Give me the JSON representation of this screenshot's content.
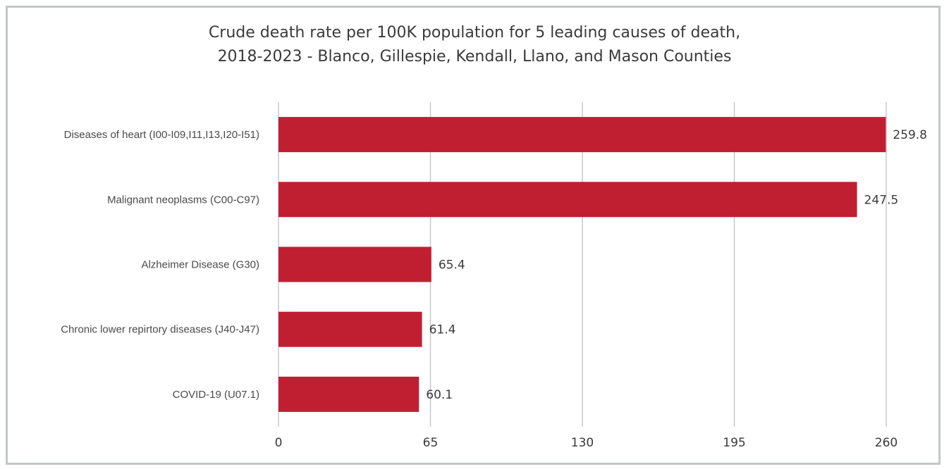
{
  "chart_data": {
    "type": "bar",
    "orientation": "horizontal",
    "title_lines": [
      "Crude death rate per 100K population for 5 leading causes of death,",
      "2018-2023 - Blanco, Gillespie, Kendall, Llano, and Mason Counties"
    ],
    "categories": [
      "Diseases of heart (I00-I09,I11,I13,I20-I51)",
      "Malignant neoplasms (C00-C97)",
      "Alzheimer Disease (G30)",
      "Chronic lower repirtory diseases (J40-J47)",
      "COVID-19 (U07.1)"
    ],
    "values": [
      259.8,
      247.5,
      65.4,
      61.4,
      60.1
    ],
    "value_labels": [
      "259.8",
      "247.5",
      "65.4",
      "61.4",
      "60.1"
    ],
    "xlim": [
      0,
      260
    ],
    "xticks": [
      0,
      65,
      130,
      195,
      260
    ],
    "xtick_labels": [
      "0",
      "65",
      "130",
      "195",
      "260"
    ],
    "grid": "vertical",
    "legend": "none",
    "bar_color": "#c01f32",
    "grid_color": "#c8c8c8"
  }
}
